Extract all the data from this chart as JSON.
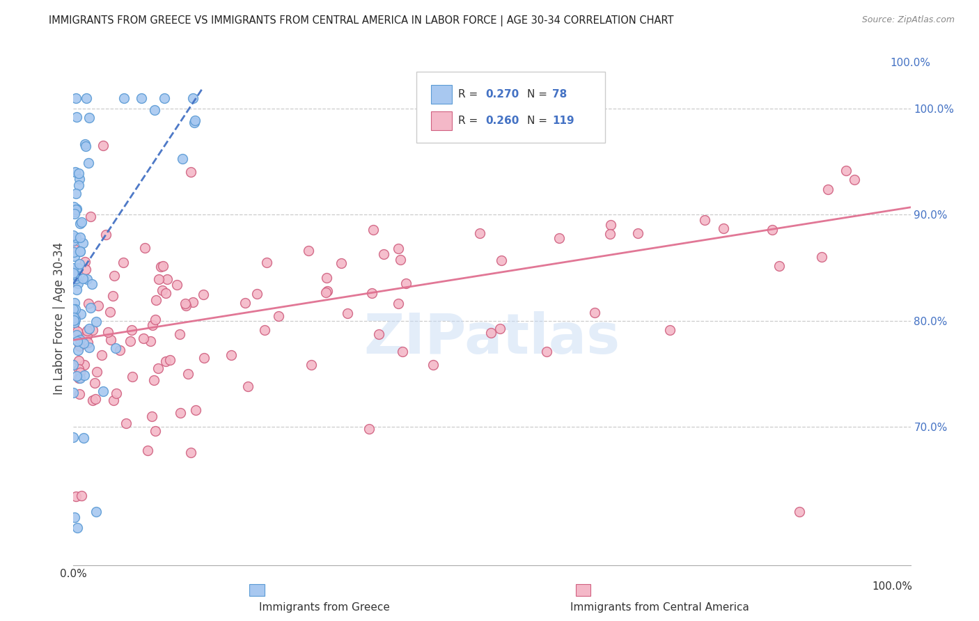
{
  "title": "IMMIGRANTS FROM GREECE VS IMMIGRANTS FROM CENTRAL AMERICA IN LABOR FORCE | AGE 30-34 CORRELATION CHART",
  "source": "Source: ZipAtlas.com",
  "xlabel_greece": "Immigrants from Greece",
  "xlabel_central": "Immigrants from Central America",
  "ylabel": "In Labor Force | Age 30-34",
  "xmin": 0.0,
  "xmax": 1.0,
  "ymin": 0.57,
  "ymax": 1.035,
  "right_yticks": [
    0.7,
    0.8,
    0.9,
    1.0
  ],
  "right_yticklabels": [
    "70.0%",
    "80.0%",
    "90.0%",
    "100.0%"
  ],
  "greece_color": "#a8c8f0",
  "greece_edge_color": "#5b9bd5",
  "central_america_color": "#f4b8c8",
  "central_america_edge_color": "#d06080",
  "trend_greece_color": "#4472c4",
  "trend_central_color": "#e07090",
  "background_color": "#ffffff",
  "grid_color": "#cccccc",
  "legend_box_color": "#ffffff",
  "legend_border_color": "#cccccc",
  "value_color": "#4472c4",
  "greece_trend_x0": 0.0,
  "greece_trend_x1": 0.155,
  "greece_trend_y0": 0.835,
  "greece_trend_y1": 1.02,
  "central_trend_x0": 0.0,
  "central_trend_x1": 1.0,
  "central_trend_y0": 0.782,
  "central_trend_y1": 0.907
}
